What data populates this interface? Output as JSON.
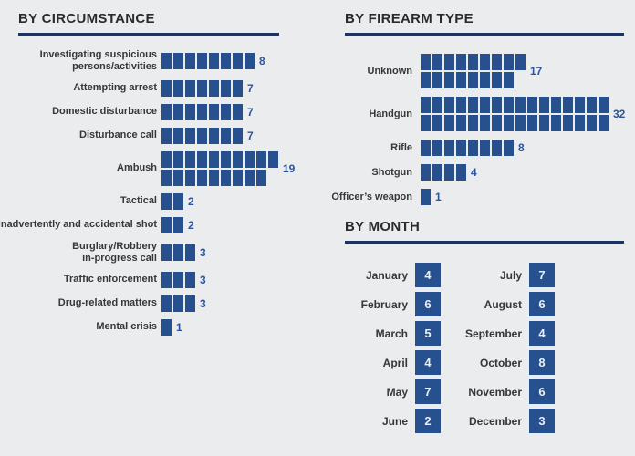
{
  "colors": {
    "bg": "#ebecee",
    "square": "#27508f",
    "count": "#2a55a0",
    "rule": "#1d3463",
    "header": "#2b2b2b",
    "label": "#373737",
    "badge_text": "#edeef0"
  },
  "chart_data": [
    {
      "type": "bar",
      "subtype": "unit-waffle",
      "title": "BY CIRCUMSTANCE",
      "orientation": "horizontal",
      "categories": [
        "Investigating suspicious\npersons/activities",
        "Attempting arrest",
        "Domestic disturbance",
        "Disturbance call",
        "Ambush",
        "Tactical",
        "Inadvertently and accidental shot",
        "Burglary/Robbery\nin-progress call",
        "Traffic enforcement",
        "Drug-related matters",
        "Mental crisis"
      ],
      "values": [
        8,
        7,
        7,
        7,
        19,
        2,
        2,
        3,
        3,
        3,
        1
      ],
      "xlabel": "",
      "ylabel": "",
      "grid": false,
      "note": "counts shown as rows of unit squares; counts over 10 wrap to two rows (ceil/floor split)"
    },
    {
      "type": "bar",
      "subtype": "unit-waffle",
      "title": "BY FIREARM TYPE",
      "orientation": "horizontal",
      "categories": [
        "Unknown",
        "Handgun",
        "Rifle",
        "Shotgun",
        "Officer’s weapon"
      ],
      "values": [
        17,
        32,
        8,
        4,
        1
      ],
      "xlabel": "",
      "ylabel": "",
      "grid": false
    },
    {
      "type": "table",
      "title": "BY MONTH",
      "categories": [
        "January",
        "February",
        "March",
        "April",
        "May",
        "June",
        "July",
        "August",
        "September",
        "October",
        "November",
        "December"
      ],
      "values": [
        4,
        6,
        5,
        4,
        7,
        2,
        7,
        6,
        4,
        8,
        6,
        3
      ],
      "layout": "two columns of six months, value shown in blue square badge"
    }
  ]
}
